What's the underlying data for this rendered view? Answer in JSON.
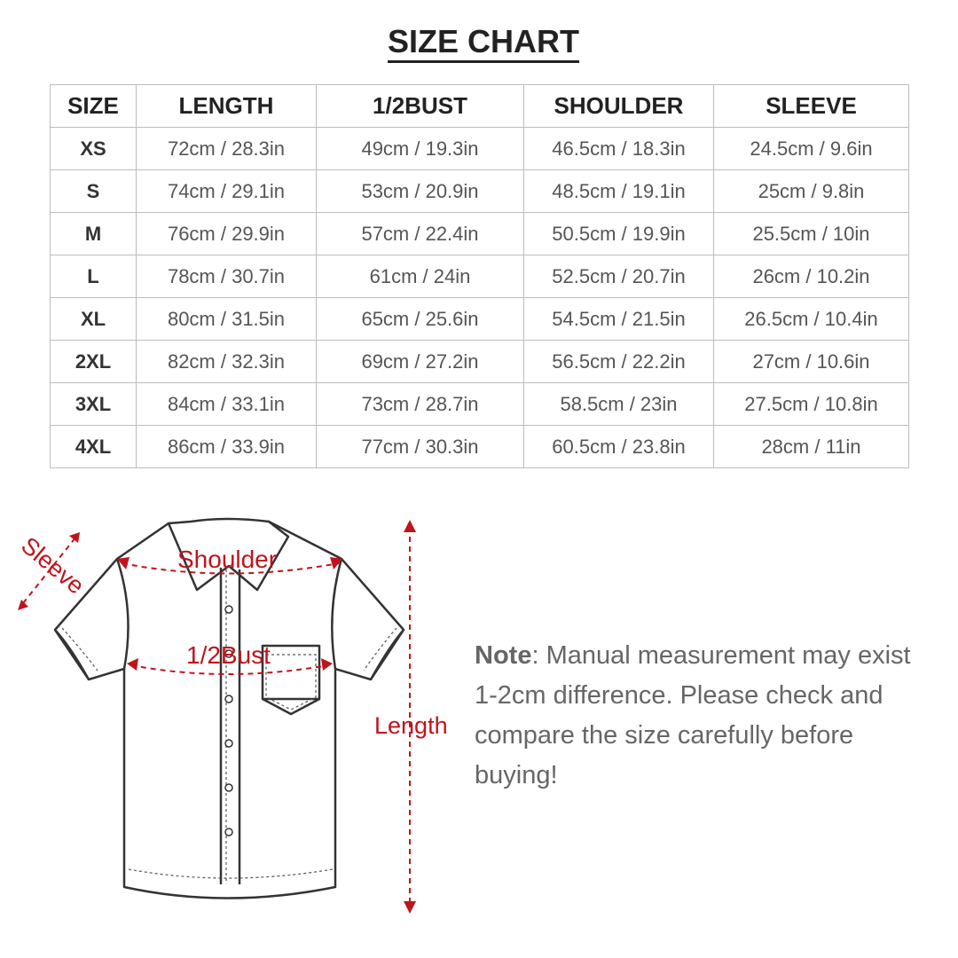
{
  "title": "SIZE CHART",
  "table": {
    "headers": [
      "SIZE",
      "LENGTH",
      "1/2BUST",
      "SHOULDER",
      "SLEEVE"
    ],
    "rows": [
      [
        "XS",
        "72cm / 28.3in",
        "49cm / 19.3in",
        "46.5cm / 18.3in",
        "24.5cm / 9.6in"
      ],
      [
        "S",
        "74cm / 29.1in",
        "53cm / 20.9in",
        "48.5cm / 19.1in",
        "25cm / 9.8in"
      ],
      [
        "M",
        "76cm / 29.9in",
        "57cm / 22.4in",
        "50.5cm / 19.9in",
        "25.5cm / 10in"
      ],
      [
        "L",
        "78cm / 30.7in",
        "61cm / 24in",
        "52.5cm / 20.7in",
        "26cm / 10.2in"
      ],
      [
        "XL",
        "80cm / 31.5in",
        "65cm / 25.6in",
        "54.5cm / 21.5in",
        "26.5cm / 10.4in"
      ],
      [
        "2XL",
        "82cm / 32.3in",
        "69cm / 27.2in",
        "56.5cm / 22.2in",
        "27cm / 10.6in"
      ],
      [
        "3XL",
        "84cm / 33.1in",
        "73cm / 28.7in",
        "58.5cm / 23in",
        "27.5cm / 10.8in"
      ],
      [
        "4XL",
        "86cm / 33.9in",
        "77cm / 30.3in",
        "60.5cm / 23.8in",
        "28cm / 11in"
      ]
    ]
  },
  "diagram": {
    "labels": {
      "sleeve": "Sleeve",
      "shoulder": "Shoulder",
      "bust": "1/2Bust",
      "length": "Length"
    },
    "accent_color": "#c0141c"
  },
  "note": {
    "label": "Note",
    "text": ": Manual measurement may exist 1-2cm difference. Please check and compare the size carefully before buying!"
  }
}
